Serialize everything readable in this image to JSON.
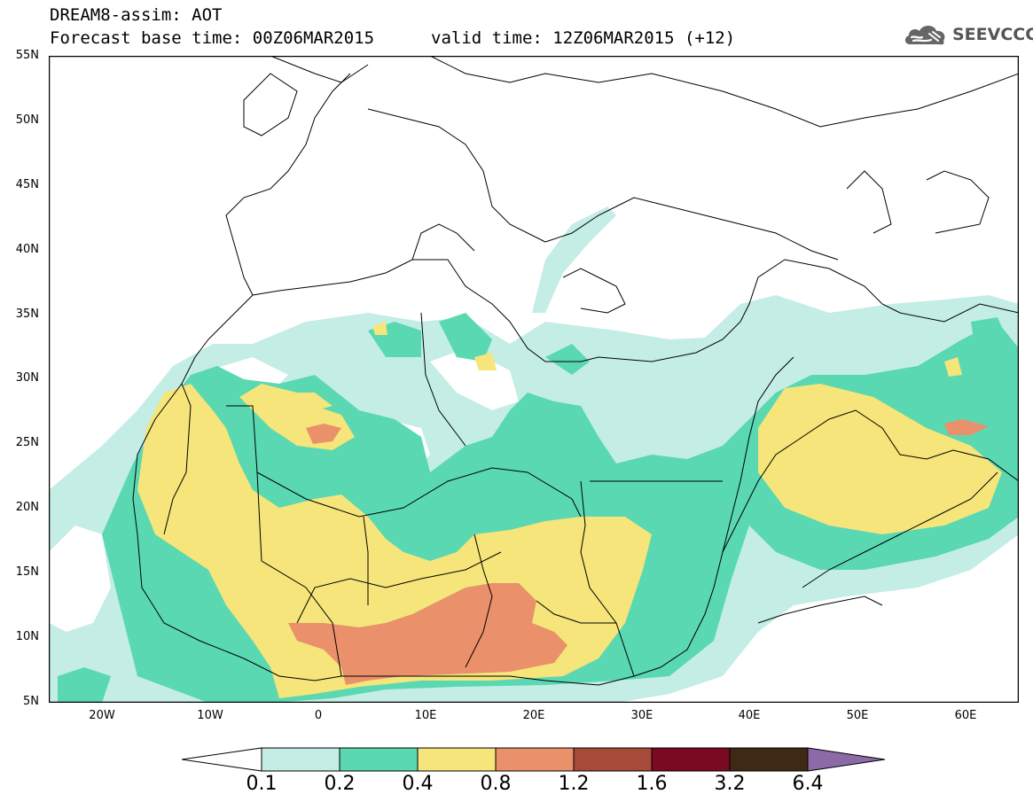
{
  "header": {
    "title": "DREAM8-assim: AOT",
    "base_time": "Forecast base time: 00Z06MAR2015",
    "valid_time": "valid time: 12Z06MAR2015 (+12)"
  },
  "logo": {
    "text": "SEEVCCC",
    "icon": "cloud-icon"
  },
  "map": {
    "lat_labels": [
      "55N",
      "50N",
      "45N",
      "40N",
      "35N",
      "30N",
      "25N",
      "20N",
      "15N",
      "10N",
      "5N"
    ],
    "lon_labels": [
      "20W",
      "10W",
      "0",
      "10E",
      "20E",
      "30E",
      "40E",
      "50E",
      "60E"
    ],
    "lon_range": [
      -25,
      65
    ],
    "lat_range": [
      5,
      55
    ]
  },
  "legend": {
    "values": [
      "0.1",
      "0.2",
      "0.4",
      "0.8",
      "1.2",
      "1.6",
      "3.2",
      "6.4"
    ],
    "colors": [
      "#ffffff",
      "#c4ede6",
      "#5ad8b2",
      "#f5e57a",
      "#ea906a",
      "#a84a3a",
      "#7a0a22",
      "#3e2a14",
      "#8c6aa8"
    ]
  }
}
